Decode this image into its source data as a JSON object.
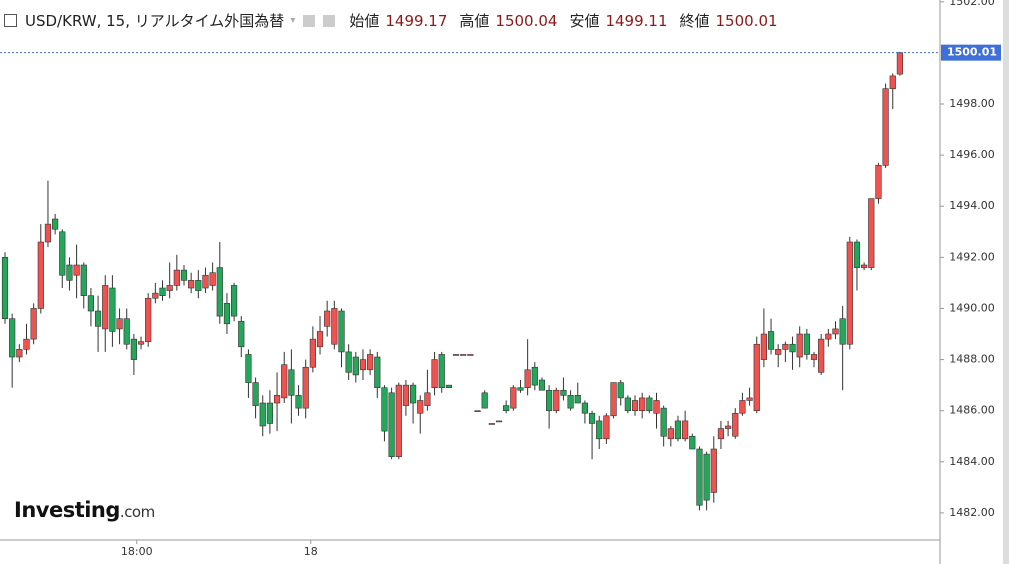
{
  "header": {
    "symbol": "USD/KRW, 15, リアルタイム外国為替",
    "open_label": "始値",
    "high_label": "高値",
    "low_label": "安値",
    "close_label": "終値"
  },
  "logo": {
    "brand": "Investing",
    "suffix": ".com"
  },
  "chart_data": {
    "type": "candlestick",
    "ylim": [
      1480.94,
      1502.07
    ],
    "xlim": [
      -0.7,
      129.9
    ],
    "yticks": [
      {
        "value": 1482,
        "label": "1482.00"
      },
      {
        "value": 1484,
        "label": "1484.00"
      },
      {
        "value": 1486,
        "label": "1486.00"
      },
      {
        "value": 1488,
        "label": "1488.00"
      },
      {
        "value": 1490,
        "label": "1490.00"
      },
      {
        "value": 1492,
        "label": "1492.00"
      },
      {
        "value": 1494,
        "label": "1494.00"
      },
      {
        "value": 1496,
        "label": "1496.00"
      },
      {
        "value": 1498,
        "label": "1498.00"
      },
      {
        "value": 1502,
        "label": "1502.00"
      }
    ],
    "xticks": [
      {
        "value": 18.4,
        "label": "18:00"
      },
      {
        "value": 42.7,
        "label": "18"
      }
    ],
    "up_color": "#ef5350",
    "down_color": "#26a65b",
    "last_line_color": "#3f6fd8",
    "candles": [
      [
        1492.0,
        1492.2,
        1489.4,
        1489.6
      ],
      [
        1489.6,
        1489.8,
        1486.9,
        1488.1
      ],
      [
        1488.1,
        1488.6,
        1487.9,
        1488.4
      ],
      [
        1488.4,
        1489.4,
        1488.2,
        1488.8
      ],
      [
        1488.8,
        1490.2,
        1488.6,
        1490.0
      ],
      [
        1490.0,
        1493.3,
        1489.8,
        1492.6
      ],
      [
        1492.6,
        1495.0,
        1492.4,
        1493.3
      ],
      [
        1493.5,
        1493.7,
        1492.9,
        1493.1
      ],
      [
        1493.0,
        1493.1,
        1490.8,
        1491.3
      ],
      [
        1491.7,
        1492.0,
        1490.7,
        1491.1
      ],
      [
        1491.3,
        1492.5,
        1490.4,
        1491.7
      ],
      [
        1491.7,
        1491.8,
        1490.0,
        1490.5
      ],
      [
        1490.5,
        1490.8,
        1489.3,
        1489.9
      ],
      [
        1489.9,
        1490.5,
        1488.3,
        1489.3
      ],
      [
        1489.2,
        1491.3,
        1488.3,
        1490.9
      ],
      [
        1490.8,
        1491.3,
        1488.5,
        1489.1
      ],
      [
        1489.2,
        1490.0,
        1488.6,
        1489.6
      ],
      [
        1489.6,
        1490.0,
        1488.4,
        1488.6
      ],
      [
        1488.8,
        1489.0,
        1487.4,
        1488.0
      ],
      [
        1488.6,
        1488.9,
        1488.4,
        1488.7
      ],
      [
        1488.7,
        1490.6,
        1488.5,
        1490.4
      ],
      [
        1490.4,
        1491.0,
        1490.2,
        1490.6
      ],
      [
        1490.8,
        1491.1,
        1490.3,
        1490.5
      ],
      [
        1490.7,
        1491.8,
        1490.4,
        1490.9
      ],
      [
        1490.9,
        1492.1,
        1490.7,
        1491.5
      ],
      [
        1491.5,
        1491.7,
        1490.9,
        1491.1
      ],
      [
        1490.8,
        1491.4,
        1490.6,
        1491.1
      ],
      [
        1491.1,
        1491.5,
        1490.4,
        1490.7
      ],
      [
        1490.8,
        1491.6,
        1490.6,
        1491.3
      ],
      [
        1490.9,
        1491.8,
        1490.7,
        1491.4
      ],
      [
        1491.6,
        1492.6,
        1489.4,
        1489.7
      ],
      [
        1490.2,
        1490.6,
        1489.0,
        1489.4
      ],
      [
        1490.9,
        1491.0,
        1489.5,
        1489.7
      ],
      [
        1489.5,
        1489.7,
        1488.1,
        1488.5
      ],
      [
        1488.2,
        1488.4,
        1486.5,
        1487.1
      ],
      [
        1487.1,
        1487.3,
        1485.7,
        1486.2
      ],
      [
        1486.3,
        1486.6,
        1485.0,
        1485.4
      ],
      [
        1486.3,
        1486.8,
        1485.1,
        1485.5
      ],
      [
        1486.3,
        1487.5,
        1485.2,
        1486.6
      ],
      [
        1486.5,
        1488.3,
        1486.3,
        1487.8
      ],
      [
        1487.6,
        1488.4,
        1485.5,
        1486.6
      ],
      [
        1486.6,
        1487.0,
        1485.8,
        1486.1
      ],
      [
        1486.1,
        1488.0,
        1485.7,
        1487.7
      ],
      [
        1487.7,
        1489.3,
        1487.5,
        1488.8
      ],
      [
        1488.5,
        1489.7,
        1488.2,
        1489.1
      ],
      [
        1489.3,
        1490.3,
        1488.9,
        1489.9
      ],
      [
        1488.6,
        1490.3,
        1488.4,
        1490.0
      ],
      [
        1489.9,
        1490.0,
        1487.7,
        1488.3
      ],
      [
        1488.3,
        1488.6,
        1487.2,
        1487.5
      ],
      [
        1488.1,
        1488.3,
        1487.1,
        1487.4
      ],
      [
        1487.6,
        1488.4,
        1487.2,
        1488.0
      ],
      [
        1487.6,
        1488.4,
        1487.4,
        1488.2
      ],
      [
        1488.1,
        1488.3,
        1486.5,
        1486.9
      ],
      [
        1486.9,
        1487.0,
        1484.8,
        1485.2
      ],
      [
        1486.7,
        1486.9,
        1484.1,
        1484.2
      ],
      [
        1484.2,
        1487.1,
        1484.1,
        1487.0
      ],
      [
        1486.2,
        1487.2,
        1485.8,
        1487.0
      ],
      [
        1487.0,
        1487.1,
        1485.5,
        1486.3
      ],
      [
        1485.9,
        1486.6,
        1485.1,
        1486.4
      ],
      [
        1486.2,
        1487.6,
        1486.0,
        1486.7
      ],
      [
        1486.9,
        1488.3,
        1486.6,
        1488.0
      ],
      [
        1488.2,
        1488.3,
        1486.7,
        1486.9
      ],
      [
        1487.0,
        1487.0,
        1486.9,
        1486.9
      ],
      [
        1488.2,
        1488.2,
        1488.2,
        1488.2
      ],
      [
        1488.2,
        1488.2,
        1488.2,
        1488.2
      ],
      [
        1488.2,
        1488.2,
        1488.2,
        1488.2
      ],
      [
        1486.0,
        1486.0,
        1486.0,
        1486.0
      ],
      [
        1486.7,
        1486.8,
        1486.1,
        1486.1
      ],
      [
        1485.5,
        1485.5,
        1485.5,
        1485.5
      ],
      [
        1485.6,
        1485.6,
        1485.6,
        1485.6
      ],
      [
        1486.2,
        1486.4,
        1485.9,
        1486.0
      ],
      [
        1486.1,
        1487.0,
        1486.0,
        1486.9
      ],
      [
        1486.9,
        1487.2,
        1486.7,
        1486.8
      ],
      [
        1486.9,
        1488.8,
        1486.6,
        1487.6
      ],
      [
        1487.7,
        1487.9,
        1486.8,
        1487.0
      ],
      [
        1487.2,
        1487.3,
        1486.8,
        1486.8
      ],
      [
        1486.8,
        1487.0,
        1485.3,
        1486.0
      ],
      [
        1486.0,
        1486.9,
        1485.9,
        1486.8
      ],
      [
        1486.8,
        1487.3,
        1486.4,
        1486.6
      ],
      [
        1486.6,
        1486.8,
        1486.0,
        1486.1
      ],
      [
        1486.6,
        1487.1,
        1486.3,
        1486.3
      ],
      [
        1486.3,
        1486.4,
        1485.5,
        1485.9
      ],
      [
        1485.9,
        1486.0,
        1484.1,
        1485.5
      ],
      [
        1485.6,
        1485.8,
        1484.5,
        1484.9
      ],
      [
        1484.9,
        1485.9,
        1484.7,
        1485.8
      ],
      [
        1485.8,
        1487.1,
        1485.7,
        1487.1
      ],
      [
        1487.1,
        1487.2,
        1486.2,
        1486.5
      ],
      [
        1486.5,
        1486.6,
        1485.9,
        1486.0
      ],
      [
        1486.0,
        1486.6,
        1485.8,
        1486.4
      ],
      [
        1486.0,
        1486.7,
        1485.7,
        1486.5
      ],
      [
        1486.5,
        1486.6,
        1485.9,
        1486.0
      ],
      [
        1485.9,
        1486.7,
        1485.3,
        1486.4
      ],
      [
        1486.1,
        1486.2,
        1484.6,
        1485.0
      ],
      [
        1484.9,
        1485.4,
        1484.6,
        1485.3
      ],
      [
        1485.6,
        1485.8,
        1484.8,
        1484.9
      ],
      [
        1484.9,
        1486.0,
        1484.8,
        1485.6
      ],
      [
        1485.0,
        1485.1,
        1484.5,
        1484.5
      ],
      [
        1484.5,
        1484.6,
        1482.1,
        1482.3
      ],
      [
        1484.3,
        1484.4,
        1482.1,
        1482.5
      ],
      [
        1482.8,
        1485.0,
        1482.4,
        1484.5
      ],
      [
        1484.9,
        1485.6,
        1484.5,
        1485.3
      ],
      [
        1485.3,
        1485.6,
        1485.0,
        1485.4
      ],
      [
        1485.0,
        1486.1,
        1484.9,
        1485.9
      ],
      [
        1485.9,
        1486.7,
        1485.8,
        1486.4
      ],
      [
        1486.4,
        1486.9,
        1486.2,
        1486.5
      ],
      [
        1486.0,
        1488.9,
        1485.9,
        1488.6
      ],
      [
        1488.0,
        1490.0,
        1487.7,
        1489.0
      ],
      [
        1489.1,
        1489.6,
        1488.2,
        1488.4
      ],
      [
        1488.2,
        1488.6,
        1487.7,
        1488.4
      ],
      [
        1488.4,
        1488.7,
        1487.9,
        1488.6
      ],
      [
        1488.6,
        1488.9,
        1487.6,
        1488.3
      ],
      [
        1488.1,
        1489.3,
        1487.7,
        1489.0
      ],
      [
        1489.0,
        1489.2,
        1488.0,
        1488.2
      ],
      [
        1488.0,
        1488.3,
        1487.7,
        1488.2
      ],
      [
        1487.5,
        1489.0,
        1487.4,
        1488.8
      ],
      [
        1488.8,
        1489.2,
        1488.5,
        1489.0
      ],
      [
        1489.0,
        1489.5,
        1488.8,
        1489.2
      ],
      [
        1489.6,
        1490.1,
        1486.8,
        1488.6
      ],
      [
        1488.6,
        1492.8,
        1488.4,
        1492.6
      ],
      [
        1492.6,
        1492.7,
        1490.7,
        1491.6
      ],
      [
        1491.6,
        1491.8,
        1491.5,
        1491.7
      ],
      [
        1491.6,
        1494.3,
        1491.5,
        1494.3
      ],
      [
        1494.3,
        1495.7,
        1494.1,
        1495.6
      ],
      [
        1495.6,
        1498.8,
        1495.5,
        1498.6
      ],
      [
        1498.6,
        1499.2,
        1497.8,
        1499.1
      ],
      [
        1499.17,
        1500.04,
        1499.11,
        1500.01
      ]
    ]
  }
}
